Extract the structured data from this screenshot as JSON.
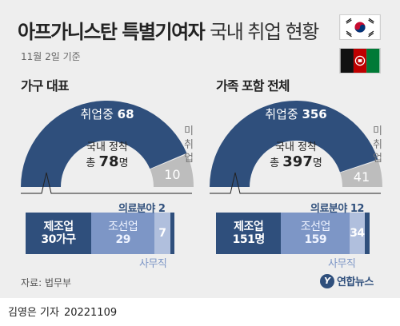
{
  "header": {
    "title_main": "아프가니스탄 특별기여자",
    "title_light": "국내 취업 현황",
    "date": "11월 2일 기준",
    "flags": [
      "korea-flag",
      "afghanistan-flag"
    ]
  },
  "colors": {
    "primary": "#2f4f7c",
    "secondary": "#7d96c6",
    "tertiary": "#b0bfdd",
    "unemployed": "#bdbdbd",
    "background": "#eeeeee"
  },
  "panels": [
    {
      "title": "가구 대표",
      "employed_label": "취업중",
      "employed": "68",
      "unemployed": "10",
      "unemployed_label": "미취업",
      "settled_label": "국내 정착",
      "settled_prefix": "총",
      "settled_value": "78",
      "settled_unit": "명"
    },
    {
      "title": "가족 포함 전체",
      "employed_label": "취업중",
      "employed": "356",
      "unemployed": "41",
      "unemployed_label": "미취업",
      "settled_label": "국내 정착",
      "settled_prefix": "총",
      "settled_value": "397",
      "settled_unit": "명"
    }
  ],
  "chart_data": [
    {
      "type": "pie",
      "title": "가구 대표",
      "categories": [
        "취업중",
        "미취업"
      ],
      "values": [
        68,
        10
      ],
      "total": 78,
      "center_text": "국내 정착 총 78명"
    },
    {
      "type": "pie",
      "title": "가족 포함 전체",
      "categories": [
        "취업중",
        "미취업"
      ],
      "values": [
        356,
        41
      ],
      "total": 397,
      "center_text": "국내 정착 총 397명"
    },
    {
      "type": "bar",
      "title": "가구 대표",
      "categories": [
        "제조업",
        "조선업",
        "사무직",
        "의료분야"
      ],
      "values": [
        30,
        29,
        7,
        2
      ],
      "units": [
        "가구",
        "",
        "",
        ""
      ]
    },
    {
      "type": "bar",
      "title": "가족 포함 전체",
      "categories": [
        "제조업",
        "조선업",
        "사무직",
        "의료분야"
      ],
      "values": [
        151,
        159,
        34,
        12
      ],
      "units": [
        "명",
        "",
        "",
        ""
      ]
    }
  ],
  "bars": [
    {
      "medical_note": "의료분야 2",
      "office_note": "사무직",
      "seg1_name": "제조업",
      "seg1_value": "30가구",
      "seg2_name": "조선업",
      "seg2_value": "29",
      "seg3_value": "7"
    },
    {
      "medical_note": "의료분야 12",
      "office_note": "사무직",
      "seg1_name": "제조업",
      "seg1_value": "151명",
      "seg2_name": "조선업",
      "seg2_value": "159",
      "seg3_value": "34"
    }
  ],
  "footer": {
    "source": "자료: 법무부",
    "logo_text": "연합뉴스",
    "logo_mark": "Y",
    "byline_author": "김영은 기자",
    "byline_date": "20221109"
  }
}
